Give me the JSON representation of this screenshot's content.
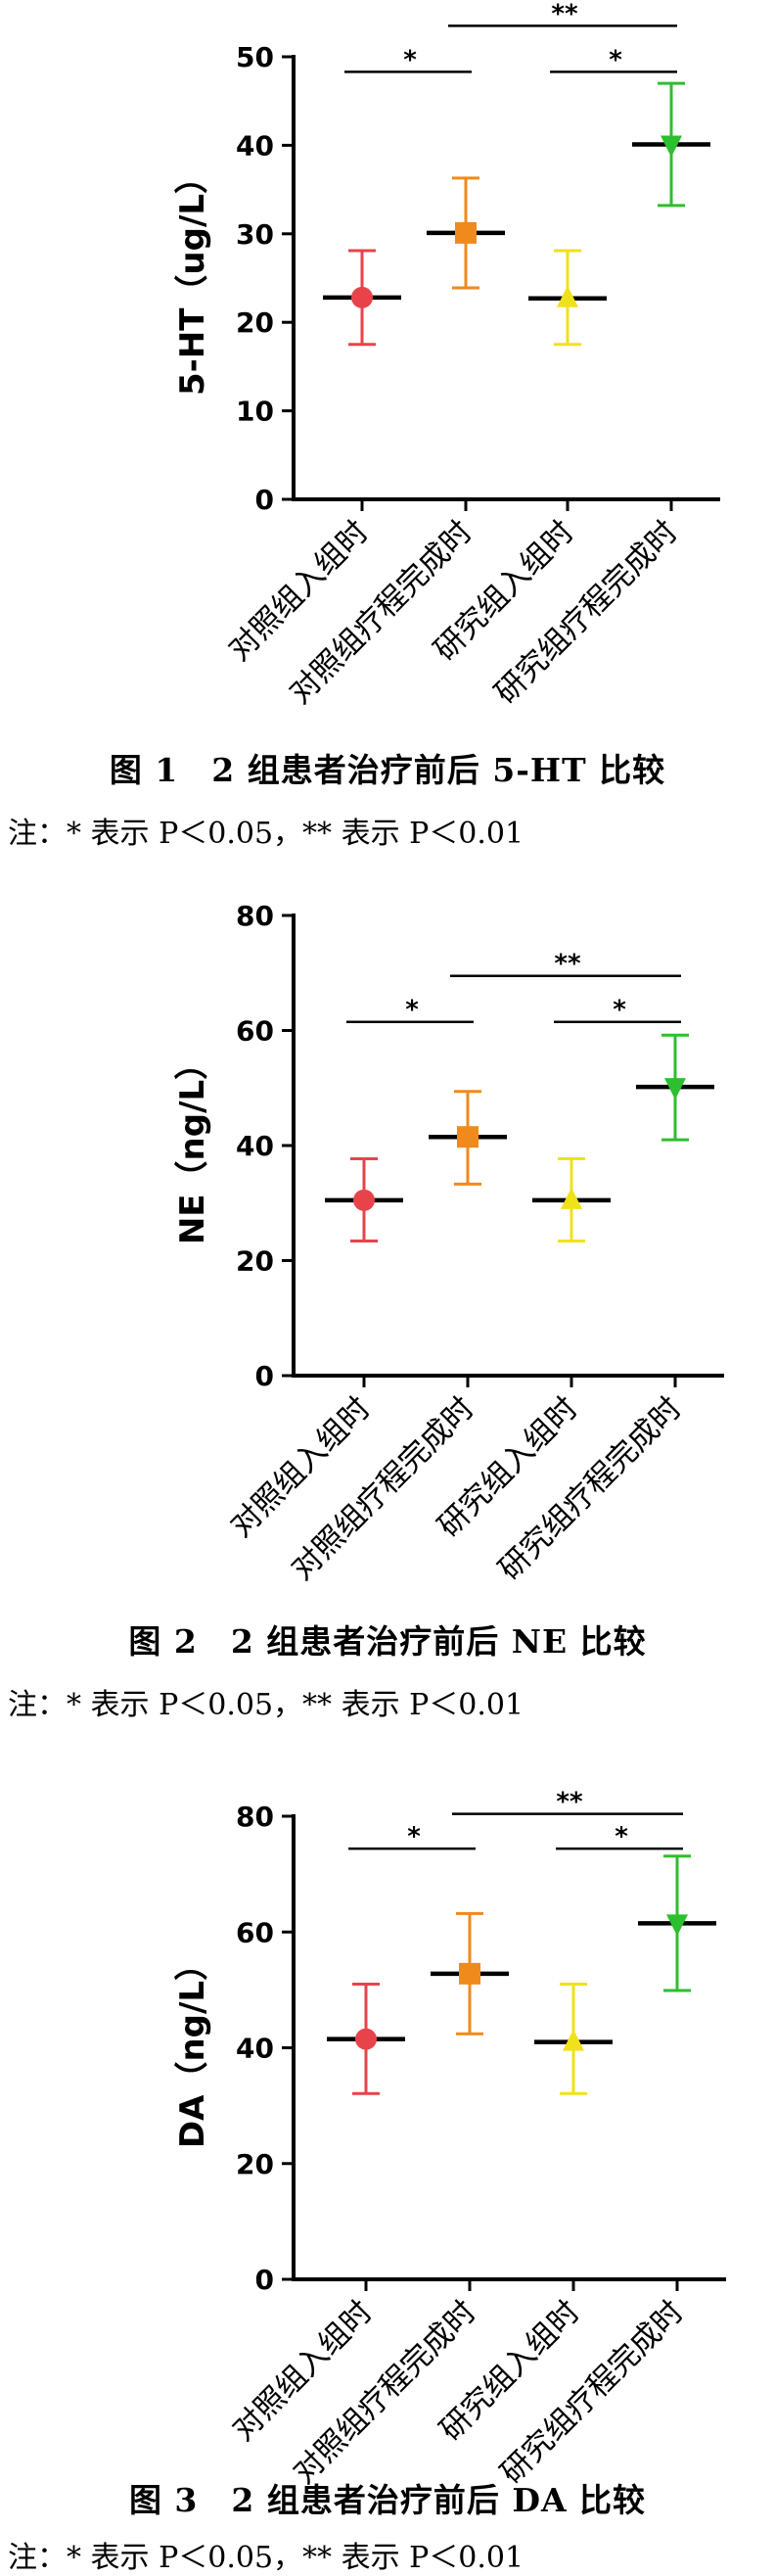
{
  "chart_data": [
    {
      "type": "scatter",
      "ylabel": "5-HT（ug/L）",
      "ylim": [
        0,
        50
      ],
      "yticks": [
        0,
        10,
        20,
        30,
        40,
        50
      ],
      "categories": [
        "对照组入组时",
        "对照组疗程完成时",
        "研究组入组时",
        "研究组疗程完成时"
      ],
      "series": [
        {
          "marker": "circle",
          "color": "#e8434b",
          "mean": 22.8,
          "low": 17.5,
          "high": 28.1
        },
        {
          "marker": "square",
          "color": "#f08a1c",
          "mean": 30.1,
          "low": 23.9,
          "high": 36.3
        },
        {
          "marker": "triangle-up",
          "color": "#f0e21a",
          "mean": 22.7,
          "low": 17.5,
          "high": 28.1
        },
        {
          "marker": "triangle-down",
          "color": "#2dbf2d",
          "mean": 40.1,
          "low": 33.2,
          "high": 47.0
        }
      ],
      "significance": [
        {
          "from": 0,
          "to": 1,
          "label": "*",
          "y": 48.3
        },
        {
          "from": 1,
          "to": 3,
          "label": "**",
          "y": 53.5
        },
        {
          "from": 2,
          "to": 3,
          "label": "*",
          "y": 48.3
        }
      ],
      "caption": "图 1　2 组患者治疗前后 5-HT 比较",
      "note": "注：* 表示 P＜0.05，** 表示 P＜0.01"
    },
    {
      "type": "scatter",
      "ylabel": "NE（ng/L）",
      "ylim": [
        0,
        80
      ],
      "yticks": [
        0,
        20,
        40,
        60,
        80
      ],
      "categories": [
        "对照组入组时",
        "对照组疗程完成时",
        "研究组入组时",
        "研究组疗程完成时"
      ],
      "series": [
        {
          "marker": "circle",
          "color": "#e8434b",
          "mean": 30.5,
          "low": 23.4,
          "high": 37.7
        },
        {
          "marker": "square",
          "color": "#f08a1c",
          "mean": 41.5,
          "low": 33.3,
          "high": 49.4
        },
        {
          "marker": "triangle-up",
          "color": "#f0e21a",
          "mean": 30.5,
          "low": 23.4,
          "high": 37.7
        },
        {
          "marker": "triangle-down",
          "color": "#2dbf2d",
          "mean": 50.2,
          "low": 41.0,
          "high": 59.2
        }
      ],
      "significance": [
        {
          "from": 0,
          "to": 1,
          "label": "*",
          "y": 61.5
        },
        {
          "from": 1,
          "to": 3,
          "label": "**",
          "y": 69.5
        },
        {
          "from": 2,
          "to": 3,
          "label": "*",
          "y": 61.5
        }
      ],
      "caption": "图 2　2 组患者治疗前后 NE 比较",
      "note": "注：* 表示 P＜0.05，** 表示 P＜0.01"
    },
    {
      "type": "scatter",
      "ylabel": "DA（ng/L）",
      "ylim": [
        0,
        80
      ],
      "yticks": [
        0,
        20,
        40,
        60,
        80
      ],
      "categories": [
        "对照组入组时",
        "对照组疗程完成时",
        "研究组入组时",
        "研究组疗程完成时"
      ],
      "series": [
        {
          "marker": "circle",
          "color": "#e8434b",
          "mean": 41.5,
          "low": 32.1,
          "high": 51.0
        },
        {
          "marker": "square",
          "color": "#f08a1c",
          "mean": 52.8,
          "low": 42.4,
          "high": 63.2
        },
        {
          "marker": "triangle-up",
          "color": "#f0e21a",
          "mean": 41.0,
          "low": 32.1,
          "high": 51.0
        },
        {
          "marker": "triangle-down",
          "color": "#2dbf2d",
          "mean": 61.5,
          "low": 49.9,
          "high": 73.1
        }
      ],
      "significance": [
        {
          "from": 0,
          "to": 1,
          "label": "*",
          "y": 74.4
        },
        {
          "from": 1,
          "to": 3,
          "label": "**",
          "y": 80.4
        },
        {
          "from": 2,
          "to": 3,
          "label": "*",
          "y": 74.4
        }
      ],
      "caption": "图 3　2 组患者治疗前后 DA 比较",
      "note": "注：* 表示 P＜0.05，** 表示 P＜0.01"
    }
  ]
}
